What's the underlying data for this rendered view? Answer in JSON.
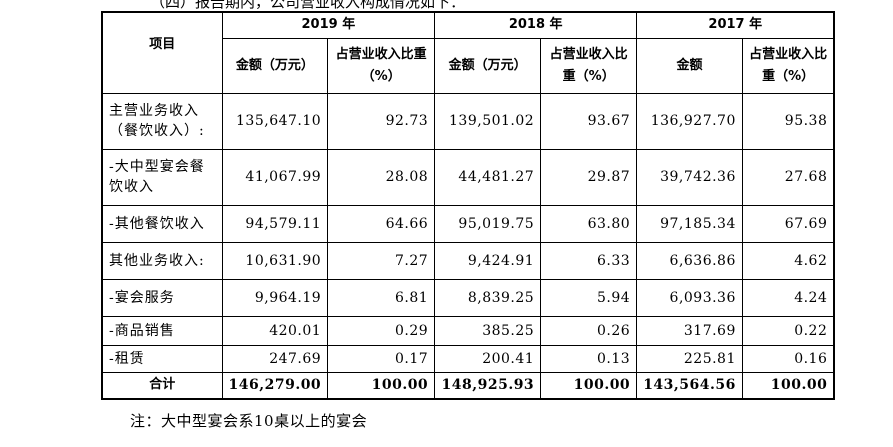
{
  "cut_line": "（四）报告期内，公司营业收入构成情况如下：",
  "table": {
    "item_header": "项目",
    "years": [
      "2019 年",
      "2018 年",
      "2017 年"
    ],
    "sub_headers": [
      [
        "金额（万元）",
        "占营业收入比重（%）"
      ],
      [
        "金额（万元）",
        "占营业收入比重（%）"
      ],
      [
        "金额",
        "占营业收入比重（%）"
      ]
    ],
    "rows": [
      {
        "label": "主营业务收入（餐饮收入）:",
        "values": [
          "135,647.10",
          "92.73",
          "139,501.02",
          "93.67",
          "136,927.70",
          "95.38"
        ]
      },
      {
        "label": "-大中型宴会餐饮收入",
        "values": [
          "41,067.99",
          "28.08",
          "44,481.27",
          "29.87",
          "39,742.36",
          "27.68"
        ]
      },
      {
        "label": "-其他餐饮收入",
        "values": [
          "94,579.11",
          "64.66",
          "95,019.75",
          "63.80",
          "97,185.34",
          "67.69"
        ]
      },
      {
        "label": "其他业务收入:",
        "values": [
          "10,631.90",
          "7.27",
          "9,424.91",
          "6.33",
          "6,636.86",
          "4.62"
        ]
      },
      {
        "label": "-宴会服务",
        "values": [
          "9,964.19",
          "6.81",
          "8,839.25",
          "5.94",
          "6,093.36",
          "4.24"
        ]
      },
      {
        "label": "-商品销售",
        "values": [
          "420.01",
          "0.29",
          "385.25",
          "0.26",
          "317.69",
          "0.22"
        ]
      },
      {
        "label": "-租赁",
        "values": [
          "247.69",
          "0.17",
          "200.41",
          "0.13",
          "225.81",
          "0.16"
        ]
      }
    ],
    "total": {
      "label": "合计",
      "values": [
        "146,279.00",
        "100.00",
        "148,925.93",
        "100.00",
        "143,564.56",
        "100.00"
      ]
    }
  },
  "note": "注：大中型宴会系10桌以上的宴会"
}
